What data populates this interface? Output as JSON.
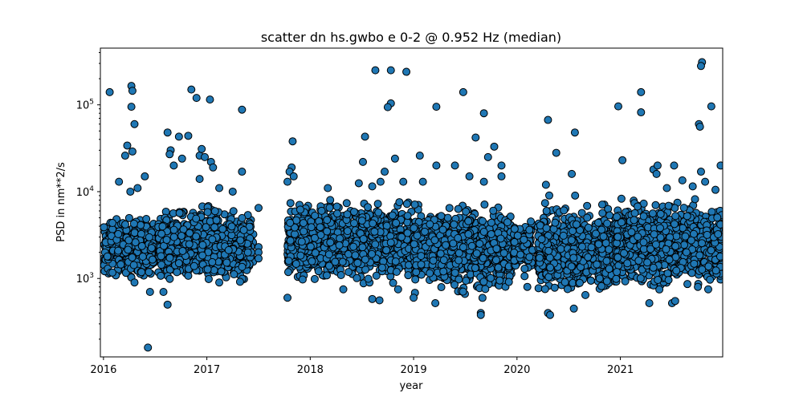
{
  "chart_data": {
    "type": "scatter",
    "title": "scatter dn hs.gwbo e 0-2 @ 0.952 Hz (median)",
    "xlabel": "year",
    "ylabel": "PSD in nm**2/s",
    "yscale": "log",
    "xlim": [
      2015.97,
      2021.99
    ],
    "ylim": [
      125,
      450000
    ],
    "grid": false,
    "legend": "none",
    "colors": {
      "marker_fill": "#1f77b4",
      "marker_edge": "#000000"
    },
    "x_ticks": [
      {
        "value": 2016,
        "label": "2016"
      },
      {
        "value": 2017,
        "label": "2017"
      },
      {
        "value": 2018,
        "label": "2018"
      },
      {
        "value": 2019,
        "label": "2019"
      },
      {
        "value": 2020,
        "label": "2020"
      },
      {
        "value": 2021,
        "label": "2021"
      }
    ],
    "y_ticks": [
      {
        "value": 1000,
        "base": "10",
        "exp": "3"
      },
      {
        "value": 10000,
        "base": "10",
        "exp": "4"
      },
      {
        "value": 100000,
        "base": "10",
        "exp": "5"
      }
    ],
    "dense_bands": [
      {
        "x0": 2016.0,
        "x1": 2016.5,
        "lo": 900,
        "hi": 6000
      },
      {
        "x0": 2016.53,
        "x1": 2017.45,
        "lo": 700,
        "hi": 8000
      },
      {
        "x0": 2017.78,
        "x1": 2018.98,
        "lo": 750,
        "hi": 9500
      },
      {
        "x0": 2019.0,
        "x1": 2019.95,
        "lo": 550,
        "hi": 8500
      },
      {
        "x0": 2019.97,
        "x1": 2020.15,
        "lo": 1000,
        "hi": 5000
      },
      {
        "x0": 2020.2,
        "x1": 2020.95,
        "lo": 500,
        "hi": 9500
      },
      {
        "x0": 2020.95,
        "x1": 2021.99,
        "lo": 650,
        "hi": 9500
      }
    ],
    "points": [
      [
        2016.06,
        140000
      ],
      [
        2016.27,
        165000
      ],
      [
        2016.28,
        145000
      ],
      [
        2016.27,
        95000
      ],
      [
        2016.3,
        60000
      ],
      [
        2016.23,
        34000
      ],
      [
        2016.21,
        26000
      ],
      [
        2016.28,
        29000
      ],
      [
        2016.4,
        15000
      ],
      [
        2016.15,
        13000
      ],
      [
        2016.33,
        11000
      ],
      [
        2016.26,
        10000
      ],
      [
        2016.43,
        160
      ],
      [
        2016.62,
        48000
      ],
      [
        2016.65,
        30000
      ],
      [
        2016.64,
        27000
      ],
      [
        2016.73,
        43000
      ],
      [
        2016.76,
        24000
      ],
      [
        2016.82,
        44000
      ],
      [
        2016.85,
        150000
      ],
      [
        2016.9,
        120000
      ],
      [
        2016.93,
        26000
      ],
      [
        2016.95,
        31000
      ],
      [
        2016.98,
        25000
      ],
      [
        2017.03,
        115000
      ],
      [
        2017.04,
        22000
      ],
      [
        2017.06,
        19000
      ],
      [
        2016.68,
        20000
      ],
      [
        2016.93,
        14000
      ],
      [
        2017.34,
        88000
      ],
      [
        2017.34,
        17000
      ],
      [
        2017.12,
        11000
      ],
      [
        2017.25,
        10000
      ],
      [
        2017.5,
        6500
      ],
      [
        2017.5,
        2300
      ],
      [
        2017.5,
        2000
      ],
      [
        2017.5,
        1700
      ],
      [
        2016.58,
        700
      ],
      [
        2016.62,
        500
      ],
      [
        2017.78,
        600
      ],
      [
        2017.83,
        38000
      ],
      [
        2017.82,
        19000
      ],
      [
        2017.8,
        17000
      ],
      [
        2017.84,
        15000
      ],
      [
        2017.78,
        13000
      ],
      [
        2018.17,
        11000
      ],
      [
        2018.47,
        12500
      ],
      [
        2018.53,
        43000
      ],
      [
        2018.51,
        22000
      ],
      [
        2018.63,
        250000
      ],
      [
        2018.78,
        250000
      ],
      [
        2018.93,
        240000
      ],
      [
        2018.78,
        104000
      ],
      [
        2018.75,
        94000
      ],
      [
        2018.72,
        17000
      ],
      [
        2018.68,
        13000
      ],
      [
        2018.82,
        24000
      ],
      [
        2018.9,
        13000
      ],
      [
        2018.6,
        11500
      ],
      [
        2019.06,
        26000
      ],
      [
        2019.09,
        13000
      ],
      [
        2019.22,
        95000
      ],
      [
        2019.22,
        20000
      ],
      [
        2019.4,
        20000
      ],
      [
        2019.48,
        140000
      ],
      [
        2019.54,
        15000
      ],
      [
        2019.6,
        42000
      ],
      [
        2019.68,
        80000
      ],
      [
        2019.72,
        25000
      ],
      [
        2019.78,
        33000
      ],
      [
        2019.85,
        20000
      ],
      [
        2019.68,
        13000
      ],
      [
        2019.85,
        15000
      ],
      [
        2019.65,
        400
      ],
      [
        2019.65,
        380
      ],
      [
        2019.21,
        520
      ],
      [
        2019.0,
        600
      ],
      [
        2020.3,
        67000
      ],
      [
        2020.38,
        28000
      ],
      [
        2020.53,
        16000
      ],
      [
        2020.56,
        48000
      ],
      [
        2020.28,
        12000
      ],
      [
        2020.3,
        400
      ],
      [
        2020.32,
        380
      ],
      [
        2020.55,
        450
      ],
      [
        2020.98,
        96000
      ],
      [
        2021.02,
        23000
      ],
      [
        2021.2,
        140000
      ],
      [
        2021.2,
        82000
      ],
      [
        2021.32,
        18000
      ],
      [
        2021.36,
        20000
      ],
      [
        2021.35,
        16000
      ],
      [
        2021.52,
        20000
      ],
      [
        2021.6,
        13500
      ],
      [
        2021.76,
        60000
      ],
      [
        2021.77,
        56000
      ],
      [
        2021.79,
        310000
      ],
      [
        2021.78,
        280000
      ],
      [
        2021.78,
        17000
      ],
      [
        2021.82,
        13000
      ],
      [
        2021.88,
        96000
      ],
      [
        2021.97,
        20000
      ],
      [
        2021.92,
        10500
      ],
      [
        2021.7,
        11500
      ],
      [
        2021.45,
        11000
      ],
      [
        2021.28,
        520
      ],
      [
        2021.5,
        520
      ],
      [
        2021.53,
        550
      ],
      [
        2021.75,
        800
      ],
      [
        2021.85,
        750
      ],
      [
        2018.32,
        750
      ],
      [
        2018.6,
        580
      ],
      [
        2018.67,
        560
      ],
      [
        2018.85,
        750
      ],
      [
        2020.1,
        800
      ],
      [
        2016.45,
        700
      ],
      [
        2017.12,
        900
      ],
      [
        2016.3,
        900
      ]
    ]
  }
}
